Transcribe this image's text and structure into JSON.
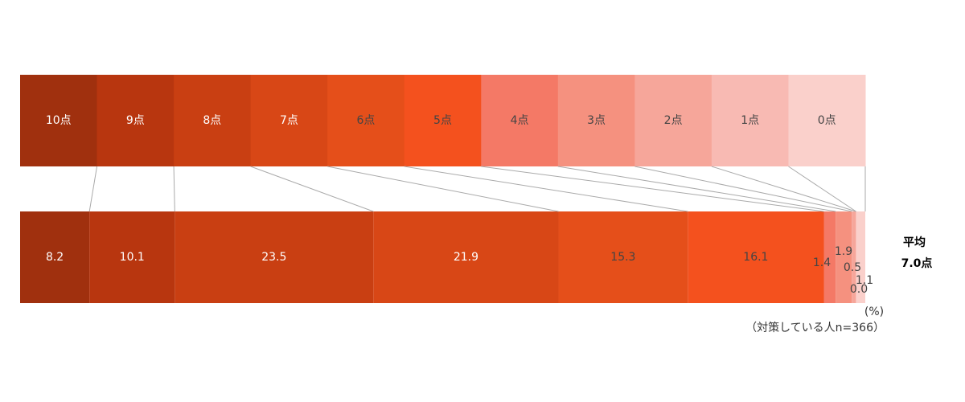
{
  "chart_data": {
    "type": "stacked_bar_100",
    "categories": [
      "10点",
      "9点",
      "8点",
      "7点",
      "6点",
      "5点",
      "4点",
      "3点",
      "2点",
      "1点",
      "0点"
    ],
    "colors": [
      "#a0300e",
      "#b8360f",
      "#c93f12",
      "#d84716",
      "#e54f1a",
      "#f4511e",
      "#f47966",
      "#f5917f",
      "#f6a69a",
      "#f8bab3",
      "#fad0cb"
    ],
    "values": [
      8.2,
      10.1,
      23.5,
      21.9,
      15.3,
      16.1,
      1.4,
      1.9,
      0.5,
      0.0,
      1.1
    ],
    "value_labels": [
      "8.2",
      "10.1",
      "23.5",
      "21.9",
      "15.3",
      "16.1",
      "1.4",
      "1.9",
      "0.5",
      "0.0",
      "1.1"
    ],
    "average_label": "平均",
    "average_value": "7.0点",
    "unit": "(%)",
    "note": "（対策している人n=366）"
  }
}
